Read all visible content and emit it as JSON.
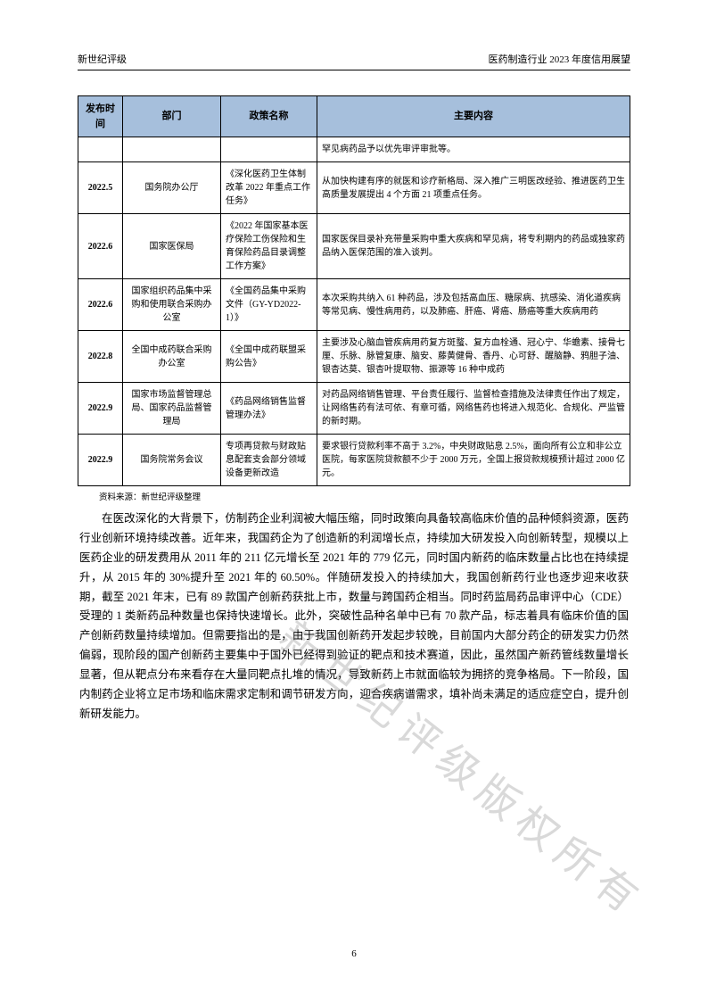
{
  "header": {
    "left": "新世纪评级",
    "right": "医药制造行业 2023 年度信用展望"
  },
  "table": {
    "columns": [
      "发布时间",
      "部门",
      "政策名称",
      "主要内容"
    ],
    "rows": [
      {
        "date": "",
        "dept": "",
        "policy": "",
        "content": "罕见病药品予以优先审评审批等。"
      },
      {
        "date": "2022.5",
        "dept": "国务院办公厅",
        "policy": "《深化医药卫生体制改革 2022 年重点工作任务》",
        "content": "从加快构建有序的就医和诊疗新格局、深入推广三明医改经验、推进医药卫生高质量发展提出 4 个方面 21 项重点任务。"
      },
      {
        "date": "2022.6",
        "dept": "国家医保局",
        "policy": "《2022 年国家基本医疗保险工伤保险和生育保险药品目录调整工作方案》",
        "content": "国家医保目录补充带量采购中重大疾病和罕见病，将专利期内的药品或独家药品纳入医保范围的准入谈判。"
      },
      {
        "date": "2022.6",
        "dept": "国家组织药品集中采购和使用联合采购办公室",
        "policy": "《全国药品集中采购文件（GY-YD2022-1）》",
        "content": "本次采购共纳入 61 种药品，涉及包括高血压、糖尿病、抗感染、消化道疾病等常见病、慢性病用药，以及肺癌、肝癌、肾癌、肠癌等重大疾病用药"
      },
      {
        "date": "2022.8",
        "dept": "全国中成药联合采购办公室",
        "policy": "《全国中成药联盟采购公告》",
        "content": "主要涉及心脑血管疾病用药复方斑蝥、复方血栓通、冠心宁、华蟾素、接骨七厘、乐脉、脉管复康、脑安、藤黄健骨、香丹、心可舒、醒脑静、鸦胆子油、银杏达莫、银杏叶提取物、振源等 16 种中成药"
      },
      {
        "date": "2022.9",
        "dept": "国家市场监督管理总局、国家药品监督管理局",
        "policy": "《药品网络销售监督管理办法》",
        "content": "对药品网络销售管理、平台责任履行、监督检查措施及法律责任作出了规定，让网络售药有法可依、有章可循，网络售药也将进入规范化、合规化、严监管的新时期。"
      },
      {
        "date": "2022.9",
        "dept": "国务院常务会议",
        "policy": "专项再贷款与财政贴息配套支会部分领域设备更新改造",
        "content": "要求银行贷款利率不高于 3.2%，中央财政贴息 2.5%，面向所有公立和非公立医院，每家医院贷款额不少于 2000 万元，全国上报贷款规模预计超过 2000 亿元。"
      }
    ]
  },
  "source": "资料来源：新世纪评级整理",
  "bodyText": "在医改深化的大背景下，仿制药企业利润被大幅压缩，同时政策向具备较高临床价值的品种倾斜资源，医药行业创新环境持续改善。近年来，我国药企为了创造新的利润增长点，持续加大研发投入向创新转型，规模以上医药企业的研发费用从 2011 年的 211 亿元增长至 2021 年的 779 亿元，同时国内新药的临床数量占比也在持续提升，从 2015 年的 30%提升至 2021 年的 60.50%。伴随研发投入的持续加大，我国创新药行业也逐步迎来收获期，截至 2021 年末，已有 89 款国产创新药获批上市，数量与跨国药企相当。同时药监局药品审评中心（CDE）受理的 1 类新药品种数量也保持快速增长。此外，突破性品种名单中已有 70 款产品，标志着具有临床价值的国产创新药数量持续增加。但需要指出的是，由于我国创新药开发起步较晚，目前国内大部分药企的研发实力仍然偏弱，现阶段的国产创新药主要集中于国外已经得到验证的靶点和技术赛道，因此，虽然国产新药管线数量增长显著，但从靶点分布来看存在大量同靶点扎堆的情况，导致新药上市就面临较为拥挤的竞争格局。下一阶段，国内制药企业将立足市场和临床需求定制和调节研发方向，迎合疾病谱需求，填补尚未满足的适应症空白，提升创新研发能力。",
  "watermark": "新世纪评级版权所有",
  "pageNumber": "6",
  "colors": {
    "headerBg": "#a6bfdc",
    "border": "#000000",
    "text": "#000000",
    "watermark": "rgba(120,120,120,0.28)"
  }
}
